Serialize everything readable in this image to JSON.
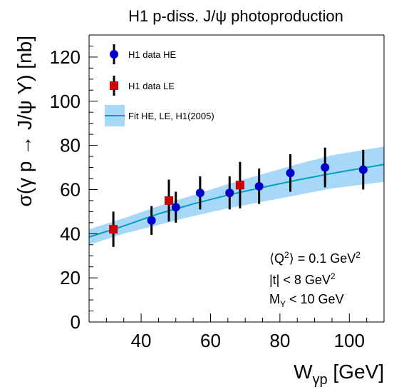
{
  "chart_data": {
    "type": "scatter",
    "title": "H1 p-diss. J/ψ photoproduction",
    "xlabel": "W",
    "xlabel_sub": "γp",
    "xlabel_unit": " [GeV]",
    "ylabel": "σ(γ p → J/ψ Y) [nb]",
    "xlim": [
      25,
      110
    ],
    "ylim": [
      0,
      130
    ],
    "xticks": [
      40,
      60,
      80,
      100
    ],
    "yticks": [
      0,
      20,
      40,
      60,
      80,
      100,
      120
    ],
    "grid": false,
    "legend_position": "top-left",
    "series": [
      {
        "name": "H1 data HE",
        "marker": "circle",
        "color": "#0000cc",
        "points": [
          {
            "x": 43.0,
            "y": 46.0,
            "err": 6.5
          },
          {
            "x": 50.0,
            "y": 52.0,
            "err": 7.0
          },
          {
            "x": 57.0,
            "y": 58.5,
            "err": 7.5
          },
          {
            "x": 65.5,
            "y": 58.5,
            "err": 7.5
          },
          {
            "x": 74.0,
            "y": 61.5,
            "err": 8.0
          },
          {
            "x": 83.0,
            "y": 67.5,
            "err": 8.5
          },
          {
            "x": 93.0,
            "y": 70.0,
            "err": 9.0
          },
          {
            "x": 104.0,
            "y": 69.0,
            "err": 9.0
          }
        ]
      },
      {
        "name": "H1 data LE",
        "marker": "square",
        "color": "#cc0000",
        "points": [
          {
            "x": 32.0,
            "y": 42.0,
            "err": 8.0
          },
          {
            "x": 48.0,
            "y": 55.0,
            "err": 9.5
          },
          {
            "x": 68.5,
            "y": 62.0,
            "err": 10.5
          }
        ]
      },
      {
        "name": "Fit HE, LE, H1(2005)",
        "type": "band",
        "line_color": "#00a0c0",
        "band_color": "#a8d8f8",
        "x": [
          25,
          35,
          45,
          55,
          65,
          75,
          85,
          95,
          110
        ],
        "y": [
          38.5,
          43.5,
          49.0,
          53.5,
          57.5,
          61.0,
          64.3,
          67.3,
          71.4
        ],
        "y_low": [
          35.0,
          40.0,
          44.0,
          48.0,
          51.5,
          54.5,
          57.5,
          60.5,
          63.5
        ],
        "y_high": [
          42.0,
          47.0,
          52.5,
          57.5,
          62.5,
          67.0,
          71.5,
          75.5,
          79.5
        ]
      }
    ],
    "annotations": [
      {
        "pre": "⟨Q",
        "sup": "2",
        "post": "⟩ = 0.1 GeV",
        "sup2": "2"
      },
      {
        "pre": "|t| < 8 GeV",
        "sup": "2",
        "post": "",
        "sup2": ""
      },
      {
        "pre": "M",
        "sub": "Y",
        "post": " < 10 GeV"
      }
    ]
  }
}
